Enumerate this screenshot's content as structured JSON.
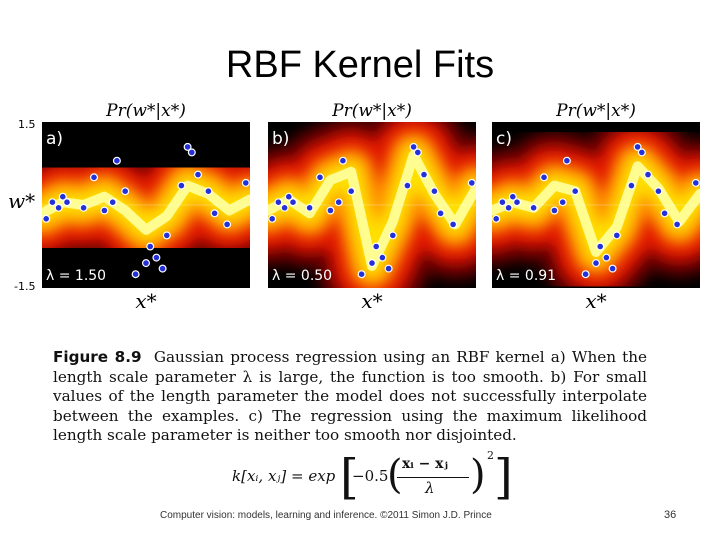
{
  "slide": {
    "title": "RBF Kernel Fits",
    "page_number": "36",
    "footer": "Computer vision: models, learning and inference. ©2011 Simon J.D. Prince"
  },
  "axes": {
    "y_top": "1.5",
    "y_bottom": "-1.5",
    "ylabel": "w*",
    "xlabel": "x*"
  },
  "panels": [
    {
      "title": "Pr(w*|x*)",
      "tag": "a)",
      "lambda_label": "λ = 1.50"
    },
    {
      "title": "Pr(w*|x*)",
      "tag": "b)",
      "lambda_label": "λ = 0.50"
    },
    {
      "title": "Pr(w*|x*)",
      "tag": "c)",
      "lambda_label": "λ = 0.91"
    }
  ],
  "caption": {
    "label": "Figure 8.9",
    "text": "Gaussian process regression using an RBF kernel a) When the length scale parameter λ is large, the function is too smooth. b) For small values of the length parameter the model does not successfully interpolate between the examples. c) The regression using the maximum likelihood length scale parameter is neither too smooth nor disjointed."
  },
  "formula": {
    "lhs": "k[xᵢ, xⱼ] = exp",
    "coef": "−0.5",
    "numerator": "xᵢ − xⱼ",
    "denominator": "λ",
    "exponent": "2"
  },
  "chart_data": {
    "type": "heatmap",
    "ylim": [
      -1.5,
      1.5
    ],
    "data_points": {
      "x": [
        0.02,
        0.05,
        0.08,
        0.1,
        0.12,
        0.2,
        0.25,
        0.3,
        0.34,
        0.36,
        0.4,
        0.45,
        0.5,
        0.52,
        0.55,
        0.58,
        0.6,
        0.67,
        0.7,
        0.72,
        0.75,
        0.8,
        0.83,
        0.89,
        0.98
      ],
      "y": [
        -0.25,
        0.05,
        -0.05,
        0.15,
        0.05,
        -0.05,
        0.5,
        -0.1,
        0.05,
        0.8,
        0.25,
        -1.25,
        -1.05,
        -0.75,
        -0.95,
        -1.15,
        -0.55,
        0.35,
        1.05,
        0.95,
        0.55,
        0.25,
        -0.15,
        -0.35,
        0.4
      ]
    },
    "panels": [
      {
        "lambda": 1.5,
        "mean_curve": {
          "x": [
            0,
            0.1,
            0.2,
            0.3,
            0.4,
            0.5,
            0.6,
            0.7,
            0.8,
            0.9,
            1.0
          ],
          "y": [
            -0.15,
            0.05,
            0.0,
            0.15,
            -0.1,
            -0.45,
            -0.2,
            0.35,
            0.2,
            -0.1,
            0.1
          ]
        }
      },
      {
        "lambda": 0.5,
        "mean_curve": {
          "x": [
            0,
            0.1,
            0.2,
            0.3,
            0.4,
            0.5,
            0.6,
            0.7,
            0.8,
            0.9,
            1.0
          ],
          "y": [
            -0.1,
            0.1,
            -0.15,
            0.45,
            0.6,
            -1.1,
            -0.3,
            0.9,
            0.2,
            -0.35,
            0.3
          ]
        }
      },
      {
        "lambda": 0.91,
        "mean_curve": {
          "x": [
            0,
            0.1,
            0.2,
            0.3,
            0.4,
            0.5,
            0.6,
            0.7,
            0.8,
            0.9,
            1.0
          ],
          "y": [
            -0.1,
            0.05,
            -0.05,
            0.35,
            0.25,
            -0.85,
            -0.4,
            0.7,
            0.3,
            -0.3,
            0.2
          ]
        }
      }
    ]
  }
}
